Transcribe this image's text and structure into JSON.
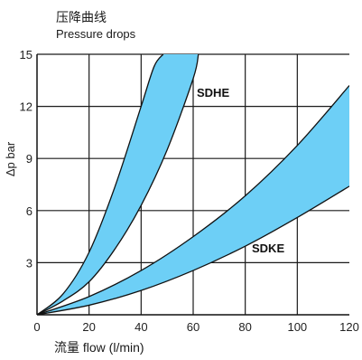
{
  "chart_data": {
    "type": "area",
    "title": "压降曲线",
    "subtitle": "Pressure drops",
    "xlabel_cn": "流量",
    "xlabel": "flow (l/min)",
    "ylabel": "Δp bar",
    "xlim": [
      0,
      120
    ],
    "ylim": [
      0,
      15
    ],
    "x_ticks": [
      "0",
      "20",
      "40",
      "60",
      "80",
      "100",
      "120"
    ],
    "y_ticks": [
      "3",
      "6",
      "9",
      "12",
      "15"
    ],
    "grid": true,
    "fill_color": "#6dcff6",
    "series": [
      {
        "name": "SDHE",
        "upper": {
          "x": [
            0,
            10,
            20,
            30,
            40,
            45,
            48.5
          ],
          "y": [
            0,
            1.2,
            3.6,
            7.4,
            12.0,
            14.3,
            15
          ]
        },
        "lower": {
          "x": [
            0,
            10,
            20,
            30,
            40,
            50,
            60,
            62
          ],
          "y": [
            0,
            0.8,
            1.9,
            3.8,
            6.3,
            9.5,
            13.6,
            15
          ]
        }
      },
      {
        "name": "SDKE",
        "upper": {
          "x": [
            0,
            20,
            40,
            60,
            80,
            100,
            120
          ],
          "y": [
            0,
            1.05,
            2.55,
            4.5,
            6.85,
            9.75,
            13.2
          ]
        },
        "lower": {
          "x": [
            0,
            20,
            40,
            60,
            80,
            100,
            120
          ],
          "y": [
            0,
            0.55,
            1.4,
            2.55,
            3.95,
            5.6,
            7.4
          ]
        }
      }
    ]
  }
}
